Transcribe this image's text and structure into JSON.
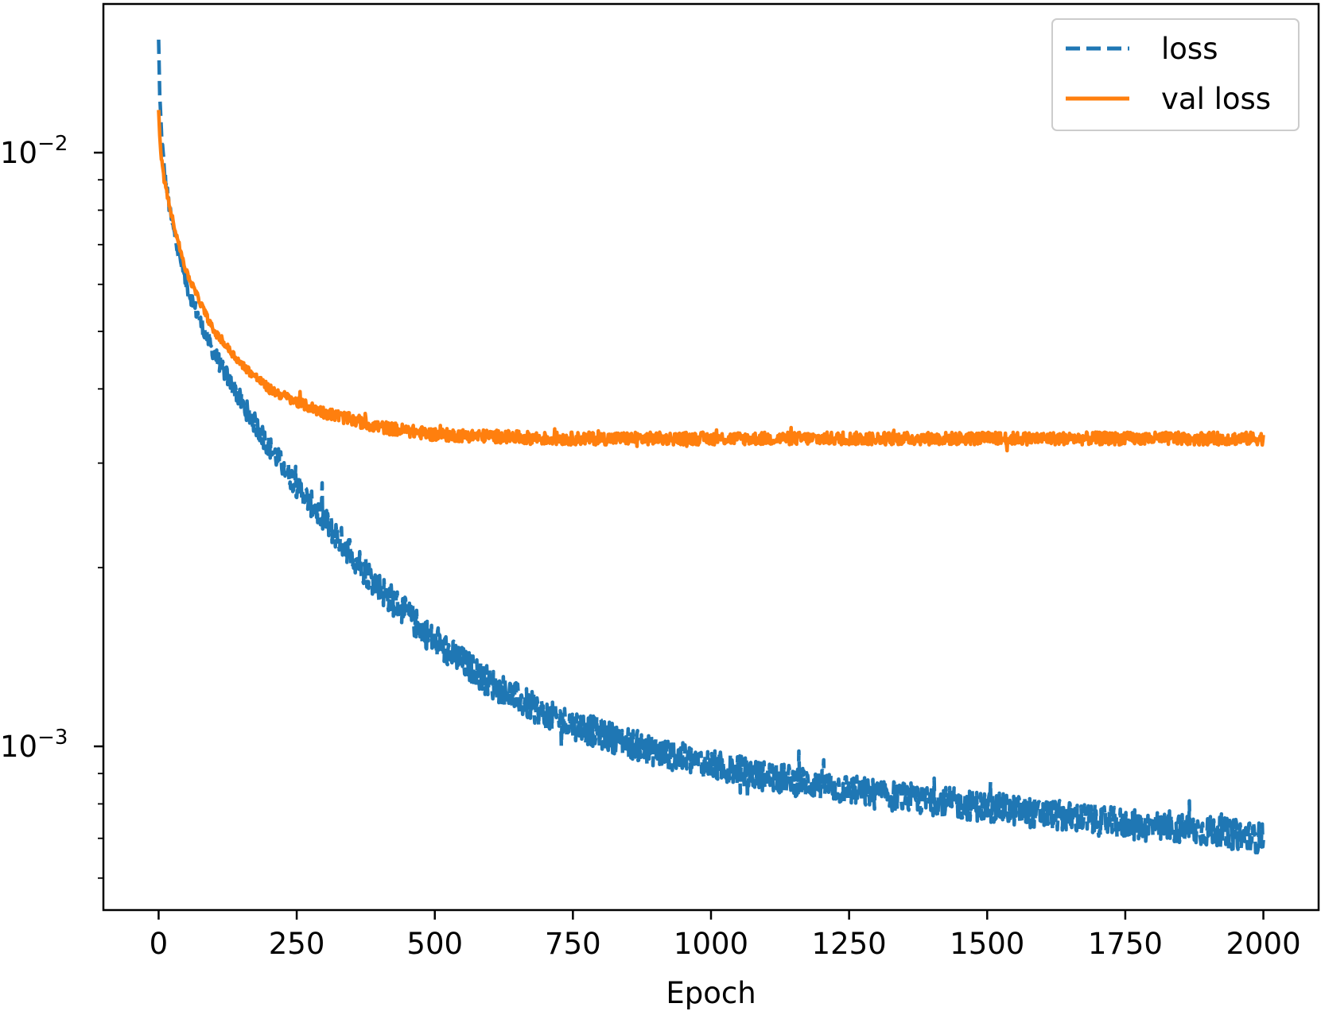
{
  "chart_data": {
    "type": "line",
    "title": "",
    "xlabel": "Epoch",
    "ylabel": "",
    "yscale": "log",
    "xlim": [
      -100,
      2100
    ],
    "ylim": [
      0.00053,
      0.0178
    ],
    "xticks": [
      0,
      250,
      500,
      750,
      1000,
      1250,
      1500,
      1750,
      2000
    ],
    "xtick_labels": [
      "0",
      "250",
      "500",
      "750",
      "1000",
      "1250",
      "1500",
      "1750",
      "2000"
    ],
    "yticks_major": [
      {
        "value": 0.01,
        "base": "10",
        "exp": "−2"
      },
      {
        "value": 0.001,
        "base": "10",
        "exp": "−3"
      }
    ],
    "legend": {
      "placement": "upper right"
    },
    "grid": false,
    "series": [
      {
        "name": "loss",
        "style": "dashed",
        "color": "#1f77b4",
        "x": [
          0,
          2,
          5,
          10,
          20,
          35,
          50,
          75,
          100,
          150,
          200,
          250,
          300,
          400,
          500,
          600,
          700,
          800,
          900,
          1000,
          1100,
          1200,
          1300,
          1400,
          1500,
          1600,
          1700,
          1800,
          1900,
          2000
        ],
        "values": [
          0.0155,
          0.0125,
          0.0108,
          0.0094,
          0.008,
          0.0068,
          0.006,
          0.0052,
          0.0046,
          0.0038,
          0.0032,
          0.00275,
          0.0024,
          0.00185,
          0.0015,
          0.00128,
          0.00113,
          0.00105,
          0.00098,
          0.00093,
          0.00089,
          0.00086,
          0.00083,
          0.00081,
          0.00079,
          0.00077,
          0.00075,
          0.00073,
          0.00072,
          0.0007
        ],
        "noise": 0.06
      },
      {
        "name": "val loss",
        "style": "solid",
        "color": "#ff7f0e",
        "x": [
          0,
          2,
          5,
          10,
          20,
          35,
          50,
          75,
          100,
          150,
          200,
          250,
          300,
          400,
          500,
          600,
          700,
          800,
          900,
          1000,
          1100,
          1200,
          1300,
          1400,
          1500,
          1600,
          1700,
          1800,
          1900,
          2000
        ],
        "values": [
          0.0118,
          0.0107,
          0.0098,
          0.009,
          0.0081,
          0.0071,
          0.0063,
          0.0056,
          0.005,
          0.0044,
          0.004,
          0.0038,
          0.00365,
          0.00345,
          0.00335,
          0.00333,
          0.0033,
          0.0033,
          0.0033,
          0.0033,
          0.0033,
          0.0033,
          0.0033,
          0.0033,
          0.0033,
          0.0033,
          0.0033,
          0.0033,
          0.0033,
          0.0033
        ],
        "noise": 0.025
      }
    ]
  }
}
